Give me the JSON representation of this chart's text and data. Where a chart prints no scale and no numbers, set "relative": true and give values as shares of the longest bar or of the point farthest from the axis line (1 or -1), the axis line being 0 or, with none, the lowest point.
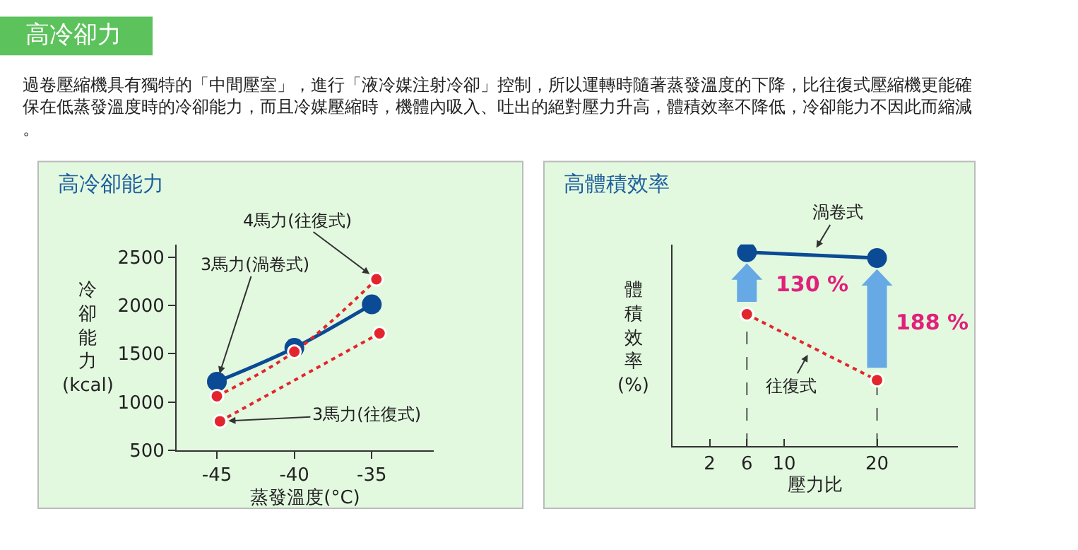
{
  "chart_data": [
    {
      "type": "other",
      "title": "高冷卻力",
      "annotations": [
        "過卷壓縮機具有獨特的「中間壓室」，進行「液冷媒注射冷卻」控制，所以運轉時隨著蒸發溫度的下降，比往復式壓縮機更能確保在低蒸發溫度時的冷卻能力，而且冷媒壓縮時，機體內吸入、吐出的絕對壓力升高，體積效率不降低，冷卻能力不因此而縮減。"
      ]
    },
    {
      "type": "line",
      "title": "高冷卻能力",
      "xlabel": "蒸發溫度(°C)",
      "ylabel": "冷卻能力(kcal)",
      "xlim": [
        -47.6,
        -31
      ],
      "ylim": [
        500,
        2630
      ],
      "xticks": [
        -45,
        -40,
        -35
      ],
      "yticks": [
        500,
        1000,
        1500,
        2000,
        2500
      ],
      "grid": false,
      "series": [
        {
          "name": "3馬力(渦卷式)",
          "color": "#0b4a94",
          "x": [
            -45,
            -40,
            -35
          ],
          "values": [
            1210,
            1560,
            2010
          ],
          "marker": "circle",
          "line_style": "solid"
        },
        {
          "name": "4馬力(往復式)",
          "color": "#e3262e",
          "x": [
            -45,
            -40,
            -34.7
          ],
          "values": [
            1060,
            1520,
            2270
          ],
          "marker": "circle",
          "line_style": "dotted"
        },
        {
          "name": "3馬力(往復式)",
          "color": "#e3262e",
          "x": [
            -44.8,
            -34.5
          ],
          "values": [
            800,
            1710
          ],
          "marker": "circle",
          "line_style": "dotted"
        }
      ]
    },
    {
      "type": "line",
      "title": "高體積效率",
      "xlabel": "壓力比",
      "ylabel": "體積效率(%)",
      "relative": true,
      "xlim": [
        -2,
        28.7
      ],
      "xticks": [
        2,
        6,
        10,
        20
      ],
      "grid": false,
      "series": [
        {
          "name": "渦卷式",
          "color": "#0b4a94",
          "x": [
            6,
            20
          ],
          "values": [
            1,
            0.97
          ],
          "marker": "circle",
          "line_style": "solid"
        },
        {
          "name": "往復式",
          "color": "#e3262e",
          "x": [
            6,
            20
          ],
          "values": [
            0.68,
            0.34
          ],
          "marker": "circle",
          "line_style": "dotted"
        }
      ],
      "ref_lines": [
        {
          "axis": "x",
          "value": 6,
          "color": "#555555",
          "line_style": "dashed"
        },
        {
          "axis": "x",
          "value": 20,
          "color": "#555555",
          "line_style": "dashed"
        }
      ],
      "annotations": [
        "130 %",
        "188 %"
      ]
    }
  ]
}
